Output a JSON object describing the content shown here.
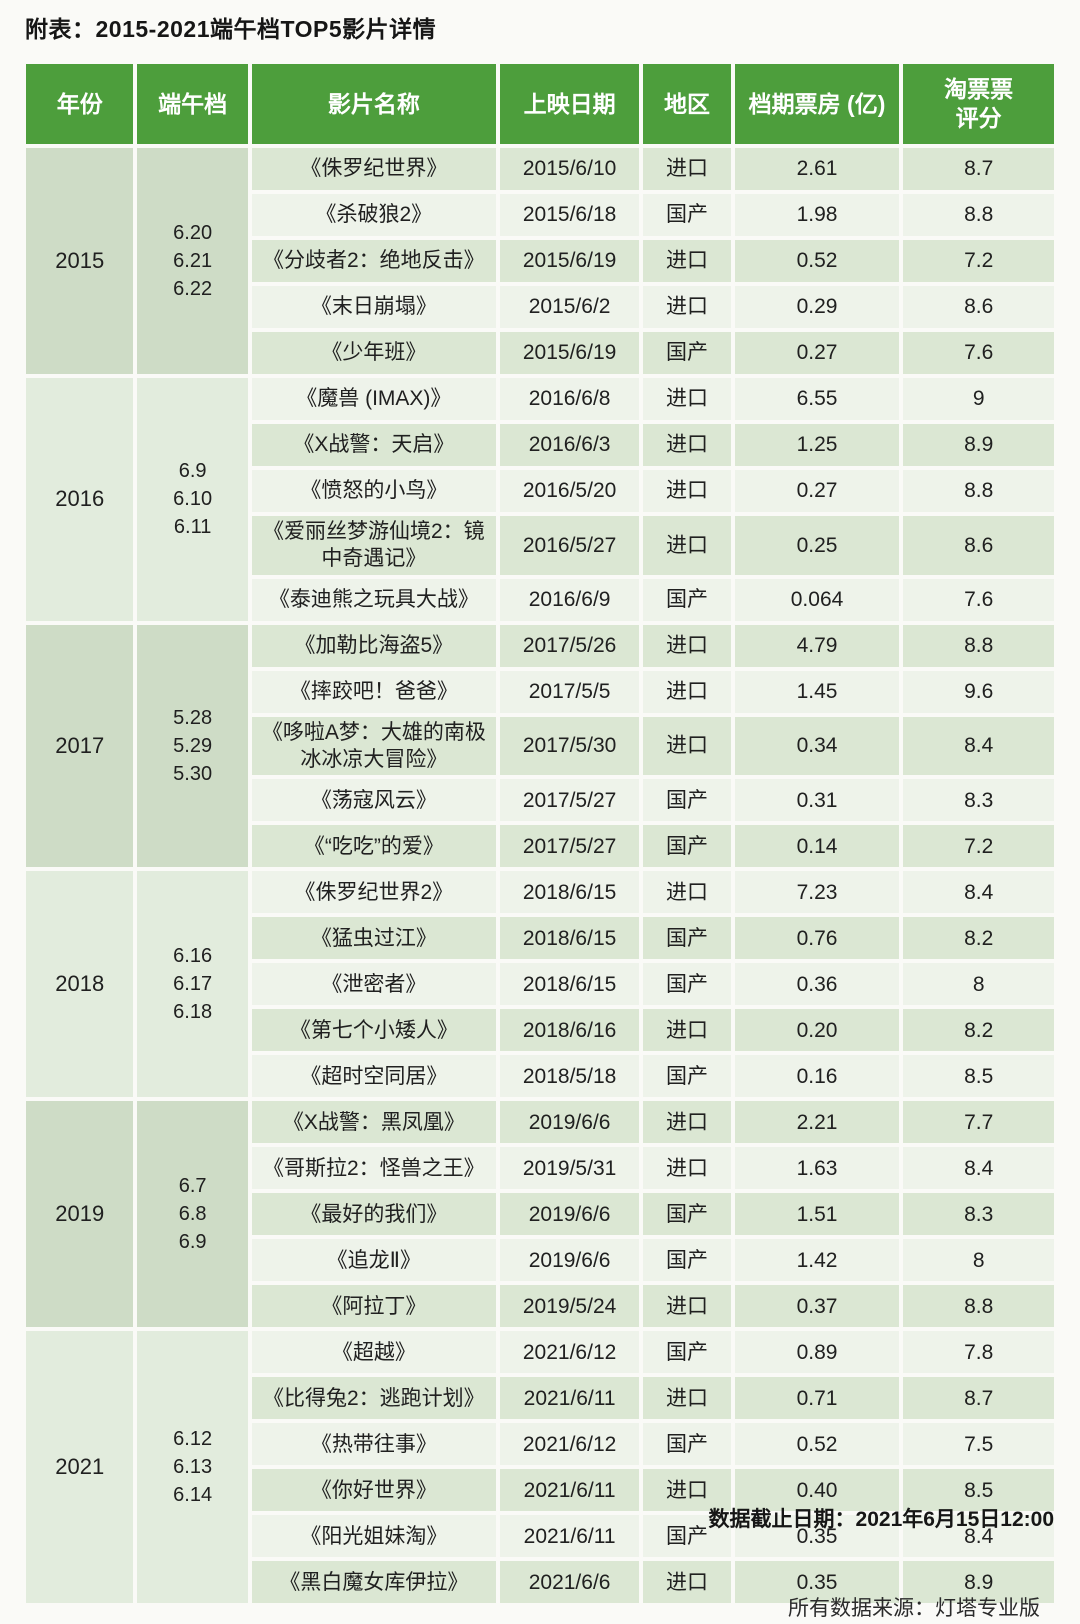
{
  "title": "附表：2015-2021端午档TOP5影片详情",
  "footer": {
    "cutoff": "数据截止日期：2021年6月15日12:00",
    "source": "所有数据来源：灯塔专业版"
  },
  "colors": {
    "page_bg": "#fafaf7",
    "title_text": "#161616",
    "header_bg": "#4d9e3c",
    "header_text": "#ffffff",
    "row_dark": "#dbe7d3",
    "row_light": "#eef3ea",
    "block_dark": "#cedcc6",
    "block_light": "#e2ecdd",
    "cell_text": "#202020"
  },
  "chart_data": {
    "type": "table",
    "columns": [
      "年份",
      "端午档",
      "影片名称",
      "上映日期",
      "地区",
      "档期票房 (亿)",
      "淘票票\n评分"
    ],
    "blocks": [
      {
        "year": "2015",
        "dates": [
          "6.20",
          "6.21",
          "6.22"
        ],
        "movies": [
          {
            "name": "《侏罗纪世界》",
            "release": "2015/6/10",
            "region": "进口",
            "boxoffice": "2.61",
            "rating": "8.7"
          },
          {
            "name": "《杀破狼2》",
            "release": "2015/6/18",
            "region": "国产",
            "boxoffice": "1.98",
            "rating": "8.8"
          },
          {
            "name": "《分歧者2：绝地反击》",
            "release": "2015/6/19",
            "region": "进口",
            "boxoffice": "0.52",
            "rating": "7.2"
          },
          {
            "name": "《末日崩塌》",
            "release": "2015/6/2",
            "region": "进口",
            "boxoffice": "0.29",
            "rating": "8.6"
          },
          {
            "name": "《少年班》",
            "release": "2015/6/19",
            "region": "国产",
            "boxoffice": "0.27",
            "rating": "7.6"
          }
        ]
      },
      {
        "year": "2016",
        "dates": [
          "6.9",
          "6.10",
          "6.11"
        ],
        "movies": [
          {
            "name": "《魔兽 (IMAX)》",
            "release": "2016/6/8",
            "region": "进口",
            "boxoffice": "6.55",
            "rating": "9"
          },
          {
            "name": "《X战警：天启》",
            "release": "2016/6/3",
            "region": "进口",
            "boxoffice": "1.25",
            "rating": "8.9"
          },
          {
            "name": "《愤怒的小鸟》",
            "release": "2016/5/20",
            "region": "进口",
            "boxoffice": "0.27",
            "rating": "8.8"
          },
          {
            "name": "《爱丽丝梦游仙境2：镜中奇遇记》",
            "release": "2016/5/27",
            "region": "进口",
            "boxoffice": "0.25",
            "rating": "8.6"
          },
          {
            "name": "《泰迪熊之玩具大战》",
            "release": "2016/6/9",
            "region": "国产",
            "boxoffice": "0.064",
            "rating": "7.6"
          }
        ]
      },
      {
        "year": "2017",
        "dates": [
          "5.28",
          "5.29",
          "5.30"
        ],
        "movies": [
          {
            "name": "《加勒比海盗5》",
            "release": "2017/5/26",
            "region": "进口",
            "boxoffice": "4.79",
            "rating": "8.8"
          },
          {
            "name": "《摔跤吧！爸爸》",
            "release": "2017/5/5",
            "region": "进口",
            "boxoffice": "1.45",
            "rating": "9.6"
          },
          {
            "name": "《哆啦A梦：大雄的南极冰冰凉大冒险》",
            "release": "2017/5/30",
            "region": "进口",
            "boxoffice": "0.34",
            "rating": "8.4"
          },
          {
            "name": "《荡寇风云》",
            "release": "2017/5/27",
            "region": "国产",
            "boxoffice": "0.31",
            "rating": "8.3"
          },
          {
            "name": "《“吃吃”的爱》",
            "release": "2017/5/27",
            "region": "国产",
            "boxoffice": "0.14",
            "rating": "7.2"
          }
        ]
      },
      {
        "year": "2018",
        "dates": [
          "6.16",
          "6.17",
          "6.18"
        ],
        "movies": [
          {
            "name": "《侏罗纪世界2》",
            "release": "2018/6/15",
            "region": "进口",
            "boxoffice": "7.23",
            "rating": "8.4"
          },
          {
            "name": "《猛虫过江》",
            "release": "2018/6/15",
            "region": "国产",
            "boxoffice": "0.76",
            "rating": "8.2"
          },
          {
            "name": "《泄密者》",
            "release": "2018/6/15",
            "region": "国产",
            "boxoffice": "0.36",
            "rating": "8"
          },
          {
            "name": "《第七个小矮人》",
            "release": "2018/6/16",
            "region": "进口",
            "boxoffice": "0.20",
            "rating": "8.2"
          },
          {
            "name": "《超时空同居》",
            "release": "2018/5/18",
            "region": "国产",
            "boxoffice": "0.16",
            "rating": "8.5"
          }
        ]
      },
      {
        "year": "2019",
        "dates": [
          "6.7",
          "6.8",
          "6.9"
        ],
        "movies": [
          {
            "name": "《X战警：黑凤凰》",
            "release": "2019/6/6",
            "region": "进口",
            "boxoffice": "2.21",
            "rating": "7.7"
          },
          {
            "name": "《哥斯拉2：怪兽之王》",
            "release": "2019/5/31",
            "region": "进口",
            "boxoffice": "1.63",
            "rating": "8.4"
          },
          {
            "name": "《最好的我们》",
            "release": "2019/6/6",
            "region": "国产",
            "boxoffice": "1.51",
            "rating": "8.3"
          },
          {
            "name": "《追龙Ⅱ》",
            "release": "2019/6/6",
            "region": "国产",
            "boxoffice": "1.42",
            "rating": "8"
          },
          {
            "name": "《阿拉丁》",
            "release": "2019/5/24",
            "region": "进口",
            "boxoffice": "0.37",
            "rating": "8.8"
          }
        ]
      },
      {
        "year": "2021",
        "dates": [
          "6.12",
          "6.13",
          "6.14"
        ],
        "movies": [
          {
            "name": "《超越》",
            "release": "2021/6/12",
            "region": "国产",
            "boxoffice": "0.89",
            "rating": "7.8"
          },
          {
            "name": "《比得兔2：逃跑计划》",
            "release": "2021/6/11",
            "region": "进口",
            "boxoffice": "0.71",
            "rating": "8.7"
          },
          {
            "name": "《热带往事》",
            "release": "2021/6/12",
            "region": "国产",
            "boxoffice": "0.52",
            "rating": "7.5"
          },
          {
            "name": "《你好世界》",
            "release": "2021/6/11",
            "region": "进口",
            "boxoffice": "0.40",
            "rating": "8.5"
          },
          {
            "name": "《阳光姐妹淘》",
            "release": "2021/6/11",
            "region": "国产",
            "boxoffice": "0.35",
            "rating": "8.4"
          },
          {
            "name": "《黑白魔女库伊拉》",
            "release": "2021/6/6",
            "region": "进口",
            "boxoffice": "0.35",
            "rating": "8.9"
          }
        ]
      }
    ]
  }
}
